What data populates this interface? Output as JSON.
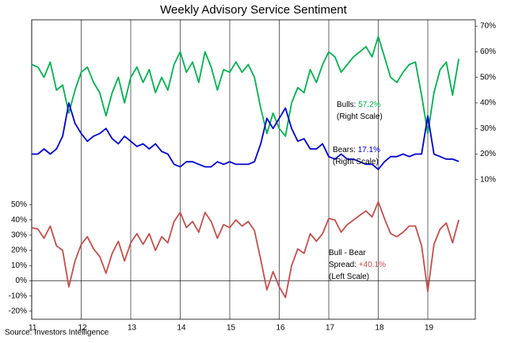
{
  "chart_data": {
    "type": "line",
    "title": "Weekly Advisory Service Sentiment",
    "source": "Source: Investors Intelligence",
    "x": [
      11,
      11.125,
      11.25,
      11.375,
      11.5,
      11.625,
      11.75,
      11.875,
      12,
      12.125,
      12.25,
      12.375,
      12.5,
      12.625,
      12.75,
      12.875,
      13,
      13.125,
      13.25,
      13.375,
      13.5,
      13.625,
      13.75,
      13.875,
      14,
      14.125,
      14.25,
      14.375,
      14.5,
      14.625,
      14.75,
      14.875,
      15,
      15.125,
      15.25,
      15.375,
      15.5,
      15.625,
      15.75,
      15.875,
      16,
      16.125,
      16.25,
      16.375,
      16.5,
      16.625,
      16.75,
      16.875,
      17,
      17.125,
      17.25,
      17.375,
      17.5,
      17.625,
      17.75,
      17.875,
      18,
      18.125,
      18.25,
      18.375,
      18.5,
      18.625,
      18.75,
      18.875,
      19,
      19.125,
      19.25,
      19.375,
      19.5,
      19.625
    ],
    "xlim": [
      11,
      19.96
    ],
    "xticks": [
      11,
      12,
      13,
      14,
      15,
      16,
      17,
      18,
      19
    ],
    "ylim": [
      -25.3,
      171.7
    ],
    "yticks": [
      {
        "value": -20,
        "label": "-20%"
      },
      {
        "value": -10,
        "label": "-10%"
      },
      {
        "value": 0,
        "label": "0%"
      },
      {
        "value": 10,
        "label": "10%"
      },
      {
        "value": 20,
        "label": "20%"
      },
      {
        "value": 30,
        "label": "30%"
      },
      {
        "value": 40,
        "label": "40%"
      },
      {
        "value": 50,
        "label": "50%"
      }
    ],
    "y2lim": [
      -44.6,
      72.5
    ],
    "y2ticks": [
      {
        "value": 10,
        "label": "10%"
      },
      {
        "value": 20,
        "label": "20%"
      },
      {
        "value": 30,
        "label": "30%"
      },
      {
        "value": 40,
        "label": "40%"
      },
      {
        "value": 50,
        "label": "50%"
      },
      {
        "value": 60,
        "label": "60%"
      },
      {
        "value": 70,
        "label": "70%"
      }
    ],
    "zero_line": 0,
    "grid": true,
    "series": [
      {
        "name": "Bulls",
        "color": "#00b050",
        "axis": "y2",
        "values": [
          55,
          54,
          50,
          56,
          45,
          47,
          36,
          45,
          52,
          54,
          48,
          44,
          35,
          44,
          50,
          40,
          50,
          54,
          48,
          53,
          44,
          50,
          45,
          55,
          60,
          52,
          56,
          48,
          60,
          54,
          45,
          53,
          52,
          56,
          52,
          55,
          50,
          38,
          28,
          36,
          30,
          27,
          40,
          46,
          44,
          53,
          48,
          55,
          60,
          58,
          52,
          55,
          58,
          60,
          62,
          58,
          66,
          58,
          50,
          48,
          52,
          55,
          56,
          43,
          28,
          44,
          53,
          56,
          43,
          57.2
        ]
      },
      {
        "name": "Bears",
        "color": "#0000cc",
        "axis": "y2",
        "values": [
          20,
          20,
          22,
          20,
          22,
          27,
          40,
          32,
          28,
          25,
          27,
          28,
          30,
          26,
          24,
          27,
          25,
          23,
          24,
          22,
          24,
          21,
          20,
          16,
          15,
          17,
          17,
          16,
          15,
          15,
          17,
          16,
          17,
          16,
          16,
          16,
          17,
          24,
          34,
          30,
          34,
          38,
          30,
          25,
          26,
          22,
          22,
          24,
          19,
          18,
          20,
          18,
          18,
          17,
          16,
          16,
          14,
          17,
          19,
          19,
          20,
          19,
          20,
          20,
          35,
          20,
          19,
          18,
          18,
          17.1
        ]
      },
      {
        "name": "Bull - Bear",
        "color": "#c0504d",
        "values": [
          35,
          34,
          28,
          36,
          23,
          20,
          -4,
          13,
          24,
          29,
          21,
          16,
          5,
          18,
          26,
          13,
          25,
          31,
          24,
          31,
          20,
          29,
          25,
          39,
          45,
          35,
          39,
          32,
          45,
          39,
          28,
          37,
          35,
          40,
          36,
          39,
          33,
          14,
          -6,
          6,
          -4,
          -11,
          10,
          21,
          18,
          31,
          26,
          31,
          41,
          40,
          32,
          37,
          40,
          43,
          46,
          42,
          52,
          41,
          31,
          29,
          32,
          36,
          36,
          23,
          -7,
          24,
          34,
          38,
          25,
          40.1
        ]
      }
    ],
    "annotations": [
      {
        "lines": [
          {
            "text": "Bulls: ",
            "value": "57.2%"
          },
          {
            "text": "(Right Scale)"
          }
        ]
      },
      {
        "lines": [
          {
            "text": "Bears: ",
            "value": "17.1%"
          },
          {
            "text": "(Right Scale)"
          }
        ]
      },
      {
        "lines": [
          {
            "text": "Bull - Bear"
          },
          {
            "text": "Spread: ",
            "value": "+40.1%"
          },
          {
            "text": "(Left Scale)"
          }
        ]
      }
    ]
  }
}
